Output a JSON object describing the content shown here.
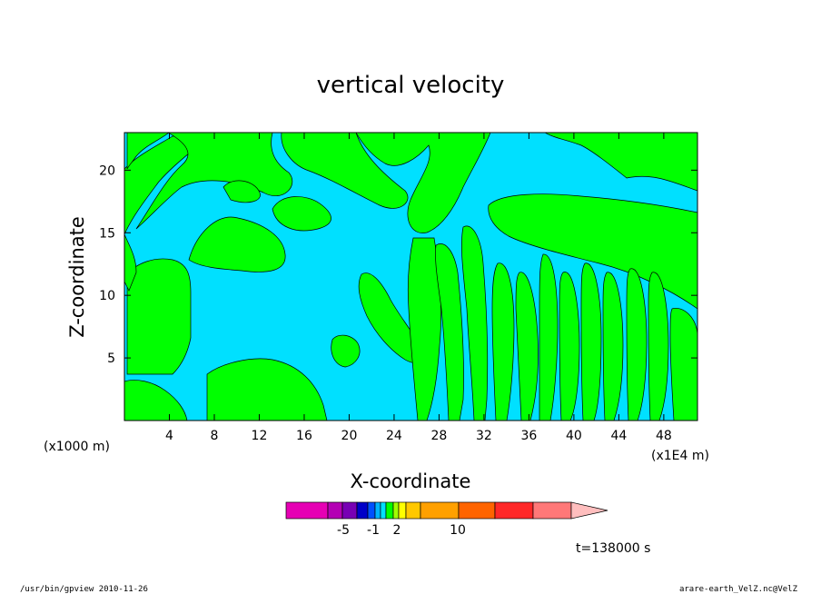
{
  "chart_data": {
    "type": "heatmap",
    "title": "vertical velocity",
    "xlabel": "X-coordinate",
    "ylabel": "Z-coordinate",
    "x_unit_left": "(x1000 m)",
    "x_unit_right": "(x1E4 m)",
    "xlim": [
      0,
      51
    ],
    "ylim": [
      0,
      23
    ],
    "x_ticks": [
      4,
      8,
      12,
      16,
      20,
      24,
      28,
      32,
      36,
      40,
      44,
      48
    ],
    "y_ticks": [
      5,
      10,
      15,
      20
    ],
    "fill_colors": {
      "positive": "#00ff00",
      "negative": "#00e0ff"
    },
    "colorbar": {
      "colors": [
        "#e600b4",
        "#b400b4",
        "#7800b4",
        "#0000c8",
        "#0050ff",
        "#00b4ff",
        "#00e0ff",
        "#00ff00",
        "#a0ff00",
        "#ffff00",
        "#ffc800",
        "#ffa000",
        "#ff6400",
        "#ff2828",
        "#ff7878",
        "#ffbebe"
      ],
      "tick_labels": [
        "-5",
        "-1",
        "2",
        "10"
      ]
    },
    "time_label": "t=138000 s"
  },
  "footer": {
    "left": "/usr/bin/gpview  2010-11-26",
    "right": "arare-earth_VelZ.nc@VelZ"
  }
}
